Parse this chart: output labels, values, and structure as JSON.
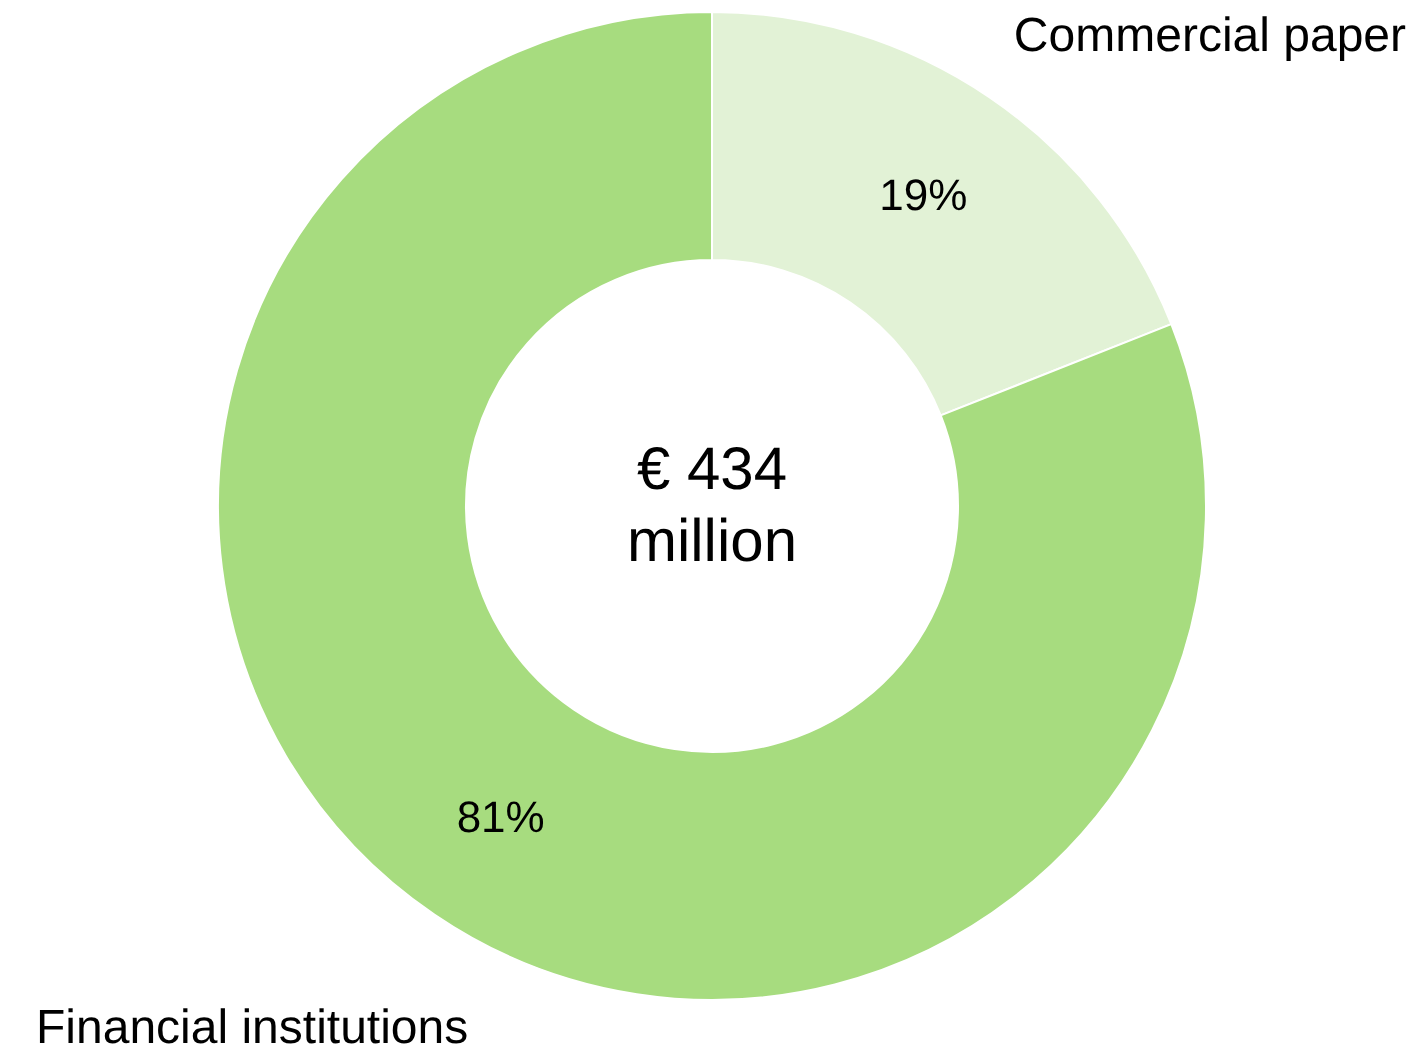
{
  "chart_data": {
    "type": "donut",
    "categories": [
      "Commercial paper",
      "Financial institutions"
    ],
    "values": [
      19,
      81
    ],
    "value_labels": [
      "19%",
      "81%"
    ],
    "colors": [
      "#e2f2d6",
      "#a7dc7f"
    ],
    "annotations": [
      "€ 434\nmillion"
    ]
  }
}
